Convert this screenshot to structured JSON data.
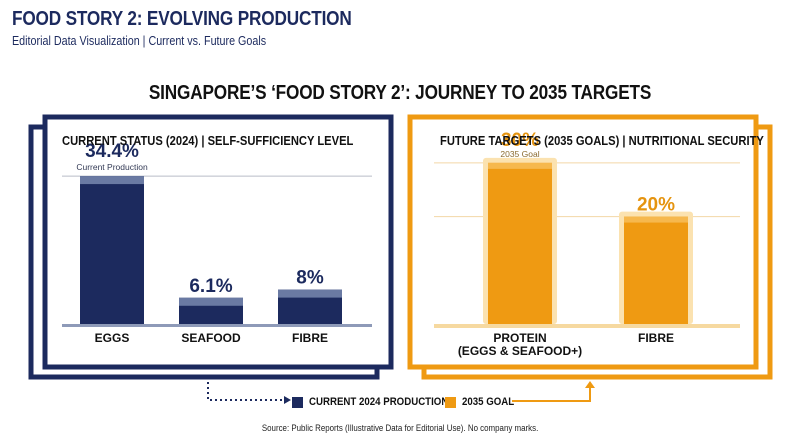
{
  "header": {
    "title": "FOOD STORY 2: EVOLVING PRODUCTION",
    "subtitle": "Editorial Data Visualization | Current vs. Future Goals"
  },
  "main_title": "SINGAPORE’S ‘FOOD STORY 2’: JOURNEY TO 2035 TARGETS",
  "panels": {
    "current": {
      "heading": "CURRENT STATUS (2024) | SELF-SUFFICIENCY LEVEL"
    },
    "future": {
      "heading": "FUTURE TARGETS (2035 GOALS) | NUTRITIONAL SECURITY"
    }
  },
  "legend": {
    "current_label": "CURRENT 2024 PRODUCTION",
    "goal_label": "2035 GOAL"
  },
  "source_note": "Source: Public Reports (Illustrative Data for Editorial Use). No company marks.",
  "colors": {
    "navy": "#1c2a5e",
    "navy_cap": "#6a7aa3",
    "orange": "#ef9a12",
    "orange_cap": "#f6b84e",
    "orange_glow": "#fbe2b0",
    "orange_label": "#e59410"
  },
  "icons": {
    "legend_left_arrow": "dotted-arrow-right-icon",
    "legend_right_arrow": "arrow-up-icon"
  },
  "chart_data": [
    {
      "type": "bar",
      "title": "CURRENT STATUS (2024) | SELF-SUFFICIENCY LEVEL",
      "categories": [
        "EGGS",
        "SEAFOOD",
        "FIBRE"
      ],
      "values": [
        34.4,
        6.1,
        8
      ],
      "value_labels": [
        "34.4%",
        "6.1%",
        "8%"
      ],
      "annotations": [
        "Current Production",
        "",
        ""
      ],
      "ylim": [
        0,
        40
      ],
      "grid": true,
      "series": [
        {
          "name": "CURRENT 2024 PRODUCTION",
          "values": [
            34.4,
            6.1,
            8
          ]
        }
      ]
    },
    {
      "type": "bar",
      "title": "FUTURE TARGETS (2035 GOALS) | NUTRITIONAL SECURITY",
      "categories": [
        "PROTEIN\n(EGGS & SEAFOOD+)",
        "FIBRE"
      ],
      "values": [
        30,
        20
      ],
      "value_labels": [
        "30%",
        "20%"
      ],
      "annotations": [
        "2035 Goal",
        ""
      ],
      "ylim": [
        0,
        35
      ],
      "grid": true,
      "series": [
        {
          "name": "2035 GOAL",
          "values": [
            30,
            20
          ]
        }
      ]
    }
  ]
}
